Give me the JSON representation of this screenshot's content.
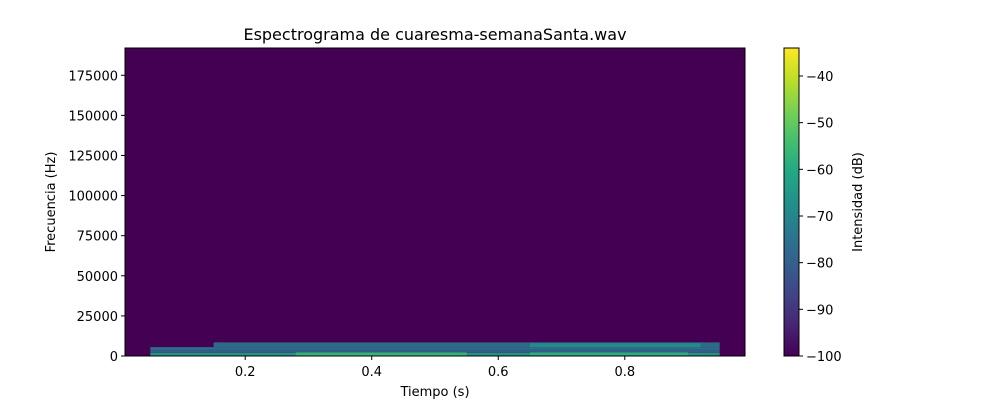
{
  "chart_data": {
    "type": "heatmap",
    "title": "Espectrograma de cuaresma-semanaSanta.wav",
    "xlabel": "Tiempo (s)",
    "ylabel": "Frecuencia (Hz)",
    "xlim": [
      0.01,
      0.99
    ],
    "ylim": [
      0,
      192000
    ],
    "x_ticks": [
      0.2,
      0.4,
      0.6,
      0.8
    ],
    "x_tick_labels": [
      "0.2",
      "0.4",
      "0.6",
      "0.8"
    ],
    "y_ticks": [
      0,
      25000,
      50000,
      75000,
      100000,
      125000,
      150000,
      175000
    ],
    "y_tick_labels": [
      "0",
      "25000",
      "50000",
      "75000",
      "100000",
      "125000",
      "150000",
      "175000"
    ],
    "colormap": "viridis",
    "background_db": -100,
    "energy_bands": [
      {
        "t_start": 0.05,
        "t_end": 0.95,
        "f_low": 0,
        "f_high": 2000,
        "db": -62
      },
      {
        "t_start": 0.05,
        "t_end": 0.95,
        "f_low": 2000,
        "f_high": 4000,
        "db": -78
      },
      {
        "t_start": 0.05,
        "t_end": 0.95,
        "f_low": 4000,
        "f_high": 5500,
        "db": -72
      },
      {
        "t_start": 0.15,
        "t_end": 0.95,
        "f_low": 5500,
        "f_high": 8500,
        "db": -74
      },
      {
        "t_start": 0.28,
        "t_end": 0.55,
        "f_low": 0,
        "f_high": 2200,
        "db": -56
      },
      {
        "t_start": 0.65,
        "t_end": 0.9,
        "f_low": 0,
        "f_high": 2200,
        "db": -58
      },
      {
        "t_start": 0.65,
        "t_end": 0.92,
        "f_low": 5500,
        "f_high": 8000,
        "db": -68
      }
    ],
    "colorbar": {
      "label": "Intensidad (dB)",
      "range": [
        -100,
        -34
      ],
      "ticks": [
        -40,
        -50,
        -60,
        -70,
        -80,
        -90,
        -100
      ],
      "tick_labels": [
        "−40",
        "−50",
        "−60",
        "−70",
        "−80",
        "−90",
        "−100"
      ]
    }
  }
}
